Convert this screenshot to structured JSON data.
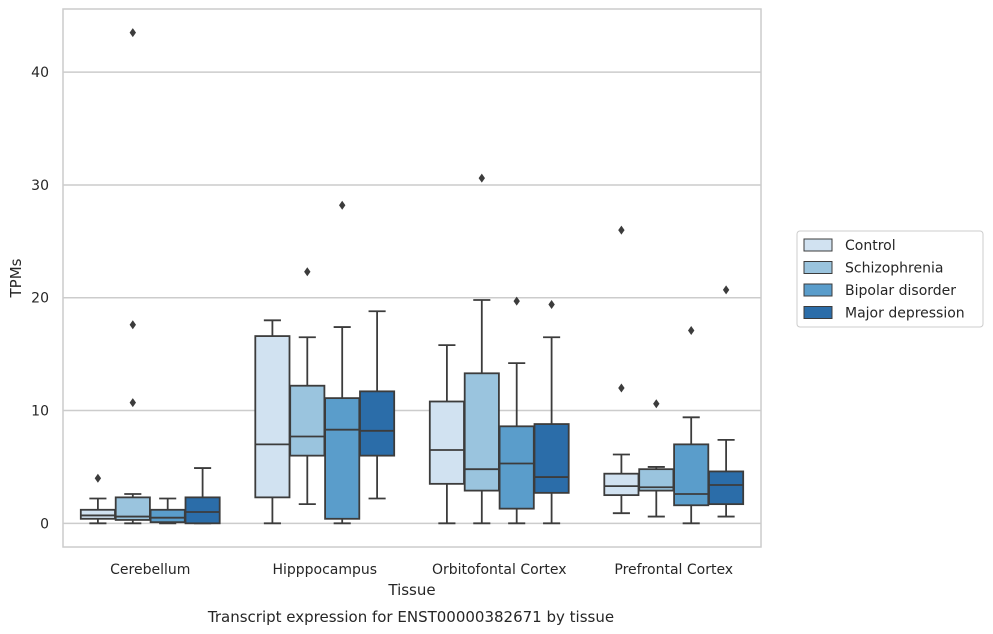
{
  "chart_data": {
    "type": "box",
    "xlabel": "Tissue",
    "ylabel": "TPMs",
    "caption": "Transcript expression for ENST00000382671 by tissue",
    "ylim": [
      -2.1,
      45.6
    ],
    "yticks": [
      0,
      10,
      20,
      30,
      40
    ],
    "grid": "horizontal",
    "legend_position": "right",
    "categories": [
      "Cerebellum",
      "Hipppocampus",
      "Orbitofontal Cortex",
      "Prefrontal Cortex"
    ],
    "series": [
      {
        "name": "Control",
        "color": "#d1e2f1",
        "boxes": [
          {
            "whislo": 0,
            "q1": 0.4,
            "med": 0.7,
            "q3": 1.2,
            "whishi": 2.2,
            "fliers": [
              4.0
            ]
          },
          {
            "whislo": 0,
            "q1": 2.3,
            "med": 7.0,
            "q3": 16.6,
            "whishi": 18.0,
            "fliers": []
          },
          {
            "whislo": 0,
            "q1": 3.5,
            "med": 6.5,
            "q3": 10.8,
            "whishi": 15.8,
            "fliers": []
          },
          {
            "whislo": 0.9,
            "q1": 2.5,
            "med": 3.3,
            "q3": 4.4,
            "whishi": 6.1,
            "fliers": [
              12.0,
              26.0
            ]
          }
        ]
      },
      {
        "name": "Schizophrenia",
        "color": "#9ac4de",
        "boxes": [
          {
            "whislo": 0,
            "q1": 0.3,
            "med": 0.6,
            "q3": 2.3,
            "whishi": 2.6,
            "fliers": [
              10.7,
              17.6,
              43.5
            ]
          },
          {
            "whislo": 1.7,
            "q1": 6.0,
            "med": 7.7,
            "q3": 12.2,
            "whishi": 16.5,
            "fliers": [
              22.3
            ]
          },
          {
            "whislo": 0,
            "q1": 2.9,
            "med": 4.8,
            "q3": 13.3,
            "whishi": 19.8,
            "fliers": [
              30.6
            ]
          },
          {
            "whislo": 0.6,
            "q1": 2.9,
            "med": 3.2,
            "q3": 4.8,
            "whishi": 5.0,
            "fliers": [
              10.6
            ]
          }
        ]
      },
      {
        "name": "Bipolar disorder",
        "color": "#5a9dcb",
        "boxes": [
          {
            "whislo": 0,
            "q1": 0.1,
            "med": 0.5,
            "q3": 1.2,
            "whishi": 2.2,
            "fliers": []
          },
          {
            "whislo": 0,
            "q1": 0.4,
            "med": 8.3,
            "q3": 11.1,
            "whishi": 17.4,
            "fliers": [
              28.2
            ]
          },
          {
            "whislo": 0,
            "q1": 1.3,
            "med": 5.3,
            "q3": 8.6,
            "whishi": 14.2,
            "fliers": [
              19.7
            ]
          },
          {
            "whislo": 0,
            "q1": 1.6,
            "med": 2.6,
            "q3": 7.0,
            "whishi": 9.4,
            "fliers": [
              17.1
            ]
          }
        ]
      },
      {
        "name": "Major depression",
        "color": "#2b6da9",
        "boxes": [
          {
            "whislo": 0,
            "q1": 0,
            "med": 1.0,
            "q3": 2.3,
            "whishi": 4.9,
            "fliers": []
          },
          {
            "whislo": 2.2,
            "q1": 6.0,
            "med": 8.2,
            "q3": 11.7,
            "whishi": 18.8,
            "fliers": []
          },
          {
            "whislo": 0,
            "q1": 2.7,
            "med": 4.1,
            "q3": 8.8,
            "whishi": 16.5,
            "fliers": [
              19.4
            ]
          },
          {
            "whislo": 0.6,
            "q1": 1.7,
            "med": 3.4,
            "q3": 4.6,
            "whishi": 7.4,
            "fliers": [
              20.7
            ]
          }
        ]
      }
    ]
  }
}
